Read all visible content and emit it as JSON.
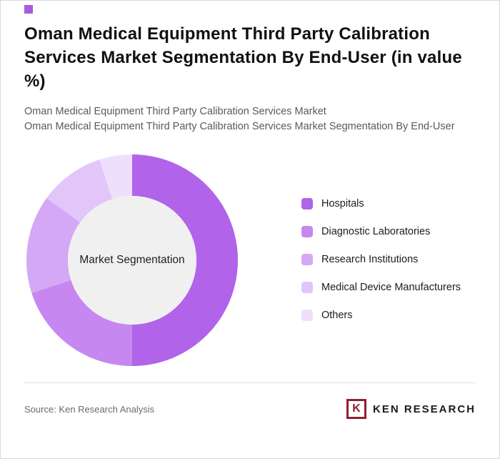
{
  "page": {
    "title": "Oman Medical Equipment Third Party Calibration Services Market Segmentation By End-User (in value %)",
    "subtitle1": "Oman Medical Equipment Third Party Calibration Services Market",
    "subtitle2": "Oman Medical Equipment Third Party Calibration Services Market Segmentation By End-User",
    "source": "Source: Ken Research Analysis",
    "logo": {
      "icon_letter": "K",
      "text": "KEN RESEARCH",
      "brand_color": "#8e2130"
    }
  },
  "chart_data": {
    "type": "pie",
    "variant": "donut",
    "title": "Oman Medical Equipment Third Party Calibration Services Market Segmentation By End-User (in value %)",
    "unit": "value %",
    "center_label": "Market Segmentation",
    "inner_hole_color": "#f0f0f0",
    "start_angle_deg": 0,
    "direction": "clockwise",
    "legend_position": "right",
    "segments": [
      {
        "label": "Hospitals",
        "value": 50,
        "color": "#b163e9"
      },
      {
        "label": "Diagnostic Laboratories",
        "value": 20,
        "color": "#c687f0"
      },
      {
        "label": "Research Institutions",
        "value": 15,
        "color": "#d5a8f5"
      },
      {
        "label": "Medical Device Manufacturers",
        "value": 10,
        "color": "#e2c6f9"
      },
      {
        "label": "Others",
        "value": 5,
        "color": "#efdffc"
      }
    ]
  }
}
